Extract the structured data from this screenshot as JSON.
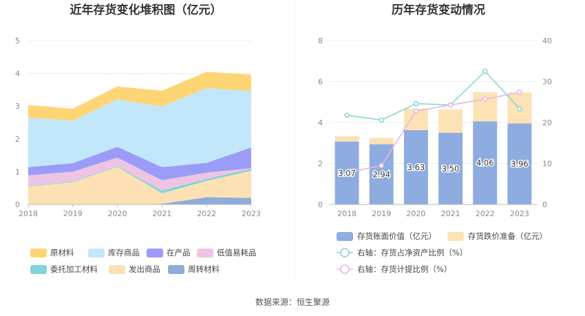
{
  "source_text": "数据来源：恒生聚源",
  "chart_data": [
    {
      "type": "area",
      "stacked": true,
      "title": "近年存货变化堆积图（亿元）",
      "x": [
        "2018",
        "2019",
        "2020",
        "2021",
        "2022",
        "2023"
      ],
      "ylim": [
        0,
        5
      ],
      "yticks": [
        0,
        1,
        2,
        3,
        4,
        5
      ],
      "grid": true,
      "legend_position": "bottom",
      "series": [
        {
          "name": "周转材料",
          "color": "#8fabd8",
          "values": [
            0.0,
            0.0,
            0.0,
            0.02,
            0.22,
            0.2
          ]
        },
        {
          "name": "发出商品",
          "color": "#fde1b4",
          "values": [
            0.55,
            0.68,
            1.15,
            0.32,
            0.5,
            0.83
          ]
        },
        {
          "name": "委托加工材料",
          "color": "#7fd5d9",
          "values": [
            0.02,
            0.02,
            0.02,
            0.08,
            0.06,
            0.06
          ]
        },
        {
          "name": "低值易耗品",
          "color": "#eec4e3",
          "values": [
            0.32,
            0.3,
            0.26,
            0.32,
            0.19,
            0.02
          ]
        },
        {
          "name": "在产品",
          "color": "#9b9cf7",
          "values": [
            0.25,
            0.26,
            0.33,
            0.4,
            0.3,
            0.63
          ]
        },
        {
          "name": "库存商品",
          "color": "#c2e7fb",
          "values": [
            1.51,
            1.3,
            1.45,
            1.85,
            2.28,
            1.72
          ]
        },
        {
          "name": "原材料",
          "color": "#fed575",
          "values": [
            0.38,
            0.36,
            0.39,
            0.48,
            0.5,
            0.5
          ]
        }
      ],
      "legend_order": [
        "原材料",
        "库存商品",
        "在产品",
        "低值易耗品",
        "委托加工材料",
        "发出商品",
        "周转材料"
      ]
    },
    {
      "type": "bar+line",
      "title": "历年存货变动情况",
      "categories": [
        "2018",
        "2019",
        "2020",
        "2021",
        "2022",
        "2023"
      ],
      "y_left": {
        "ylim": [
          0,
          8
        ],
        "ticks": [
          0,
          2,
          4,
          6,
          8
        ]
      },
      "y_right": {
        "ylim": [
          0,
          40
        ],
        "ticks": [
          0,
          10,
          20,
          30,
          40
        ]
      },
      "bars": [
        {
          "name": "存货账面价值（亿元）",
          "color": "#8eace0",
          "values": [
            3.07,
            2.94,
            3.63,
            3.5,
            4.06,
            3.96
          ],
          "labels": [
            "3.07",
            "2.94",
            "3.63",
            "3.50",
            "4.06",
            "3.96"
          ]
        },
        {
          "name": "存货跌价准备（亿元）",
          "color": "#fde2b5",
          "values": [
            0.26,
            0.31,
            1.05,
            1.14,
            1.42,
            1.5
          ]
        }
      ],
      "lines": [
        {
          "name": "右轴：存货占净资产比例（%）",
          "color": "#88d6d2",
          "values": [
            21.8,
            20.6,
            24.6,
            24.3,
            32.5,
            23.4
          ]
        },
        {
          "name": "右轴：存货计提比例（%）",
          "color": "#e6b5e0",
          "values": [
            7.8,
            9.5,
            22.8,
            24.3,
            25.7,
            27.4
          ]
        }
      ]
    }
  ]
}
